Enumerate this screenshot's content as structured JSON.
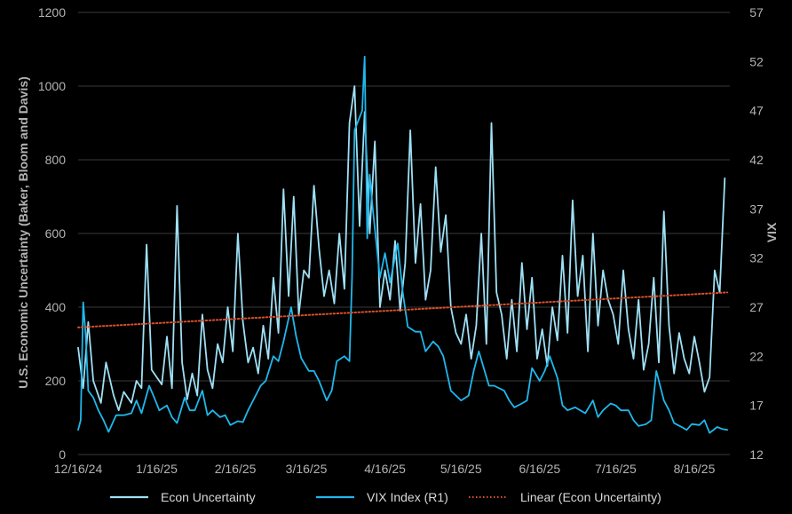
{
  "chart_data": {
    "type": "line",
    "background": "#000000",
    "grid": true,
    "legend_position": "bottom",
    "x_ticks": [
      "12/16/24",
      "1/16/25",
      "2/16/25",
      "3/16/25",
      "4/16/25",
      "5/16/25",
      "6/16/25",
      "7/16/25",
      "8/16/25"
    ],
    "x_range": [
      "2024-12-16",
      "2025-08-30"
    ],
    "y_left": {
      "label": "U.S. Economic Uncertainty (Baker, Bloom and Davis)",
      "ticks": [
        "0",
        "200",
        "400",
        "600",
        "800",
        "1000",
        "1200"
      ],
      "range": [
        0,
        1200
      ]
    },
    "y_right": {
      "label": "VIX",
      "ticks": [
        "12",
        "17",
        "22",
        "27",
        "32",
        "37",
        "42",
        "47",
        "52",
        "57"
      ],
      "range": [
        12,
        57
      ]
    },
    "series": [
      {
        "name": "Econ Uncertainty",
        "axis": "left",
        "color": "#9fe0f5",
        "points": [
          [
            "2024-12-16",
            290
          ],
          [
            "2024-12-18",
            180
          ],
          [
            "2024-12-20",
            360
          ],
          [
            "2024-12-22",
            200
          ],
          [
            "2024-12-25",
            140
          ],
          [
            "2024-12-27",
            250
          ],
          [
            "2024-12-30",
            160
          ],
          [
            "2025-01-01",
            120
          ],
          [
            "2025-01-03",
            170
          ],
          [
            "2025-01-06",
            140
          ],
          [
            "2025-01-08",
            200
          ],
          [
            "2025-01-10",
            180
          ],
          [
            "2025-01-12",
            570
          ],
          [
            "2025-01-14",
            230
          ],
          [
            "2025-01-16",
            210
          ],
          [
            "2025-01-18",
            190
          ],
          [
            "2025-01-20",
            320
          ],
          [
            "2025-01-22",
            180
          ],
          [
            "2025-01-24",
            675
          ],
          [
            "2025-01-26",
            250
          ],
          [
            "2025-01-28",
            150
          ],
          [
            "2025-01-30",
            220
          ],
          [
            "2025-02-01",
            160
          ],
          [
            "2025-02-03",
            380
          ],
          [
            "2025-02-05",
            230
          ],
          [
            "2025-02-07",
            180
          ],
          [
            "2025-02-09",
            300
          ],
          [
            "2025-02-11",
            250
          ],
          [
            "2025-02-13",
            400
          ],
          [
            "2025-02-15",
            280
          ],
          [
            "2025-02-17",
            600
          ],
          [
            "2025-02-19",
            360
          ],
          [
            "2025-02-21",
            250
          ],
          [
            "2025-02-23",
            290
          ],
          [
            "2025-02-25",
            220
          ],
          [
            "2025-02-27",
            350
          ],
          [
            "2025-03-01",
            260
          ],
          [
            "2025-03-03",
            480
          ],
          [
            "2025-03-05",
            330
          ],
          [
            "2025-03-07",
            720
          ],
          [
            "2025-03-09",
            430
          ],
          [
            "2025-03-11",
            700
          ],
          [
            "2025-03-13",
            380
          ],
          [
            "2025-03-15",
            500
          ],
          [
            "2025-03-17",
            480
          ],
          [
            "2025-03-19",
            730
          ],
          [
            "2025-03-21",
            560
          ],
          [
            "2025-03-23",
            430
          ],
          [
            "2025-03-25",
            500
          ],
          [
            "2025-03-27",
            410
          ],
          [
            "2025-03-29",
            600
          ],
          [
            "2025-03-31",
            450
          ],
          [
            "2025-04-02",
            900
          ],
          [
            "2025-04-04",
            1000
          ],
          [
            "2025-04-06",
            620
          ],
          [
            "2025-04-08",
            930
          ],
          [
            "2025-04-10",
            600
          ],
          [
            "2025-04-12",
            850
          ],
          [
            "2025-04-14",
            400
          ],
          [
            "2025-04-16",
            500
          ],
          [
            "2025-04-18",
            420
          ],
          [
            "2025-04-20",
            580
          ],
          [
            "2025-04-22",
            390
          ],
          [
            "2025-04-24",
            520
          ],
          [
            "2025-04-26",
            880
          ],
          [
            "2025-04-28",
            520
          ],
          [
            "2025-04-30",
            680
          ],
          [
            "2025-05-02",
            420
          ],
          [
            "2025-05-04",
            500
          ],
          [
            "2025-05-06",
            780
          ],
          [
            "2025-05-08",
            550
          ],
          [
            "2025-05-10",
            650
          ],
          [
            "2025-05-12",
            400
          ],
          [
            "2025-05-14",
            330
          ],
          [
            "2025-05-16",
            300
          ],
          [
            "2025-05-18",
            380
          ],
          [
            "2025-05-20",
            260
          ],
          [
            "2025-05-22",
            350
          ],
          [
            "2025-05-24",
            600
          ],
          [
            "2025-05-26",
            300
          ],
          [
            "2025-05-28",
            900
          ],
          [
            "2025-05-30",
            440
          ],
          [
            "2025-06-01",
            380
          ],
          [
            "2025-06-03",
            260
          ],
          [
            "2025-06-05",
            420
          ],
          [
            "2025-06-07",
            280
          ],
          [
            "2025-06-09",
            520
          ],
          [
            "2025-06-11",
            340
          ],
          [
            "2025-06-13",
            480
          ],
          [
            "2025-06-15",
            260
          ],
          [
            "2025-06-17",
            340
          ],
          [
            "2025-06-19",
            240
          ],
          [
            "2025-06-21",
            400
          ],
          [
            "2025-06-23",
            310
          ],
          [
            "2025-06-25",
            540
          ],
          [
            "2025-06-27",
            330
          ],
          [
            "2025-06-29",
            690
          ],
          [
            "2025-07-01",
            430
          ],
          [
            "2025-07-03",
            540
          ],
          [
            "2025-07-05",
            280
          ],
          [
            "2025-07-07",
            600
          ],
          [
            "2025-07-09",
            350
          ],
          [
            "2025-07-11",
            500
          ],
          [
            "2025-07-13",
            420
          ],
          [
            "2025-07-15",
            380
          ],
          [
            "2025-07-17",
            300
          ],
          [
            "2025-07-19",
            500
          ],
          [
            "2025-07-21",
            340
          ],
          [
            "2025-07-23",
            260
          ],
          [
            "2025-07-25",
            420
          ],
          [
            "2025-07-27",
            230
          ],
          [
            "2025-07-29",
            300
          ],
          [
            "2025-07-31",
            480
          ],
          [
            "2025-08-02",
            250
          ],
          [
            "2025-08-04",
            660
          ],
          [
            "2025-08-06",
            350
          ],
          [
            "2025-08-08",
            220
          ],
          [
            "2025-08-10",
            330
          ],
          [
            "2025-08-12",
            260
          ],
          [
            "2025-08-14",
            220
          ],
          [
            "2025-08-16",
            320
          ],
          [
            "2025-08-18",
            250
          ],
          [
            "2025-08-20",
            170
          ],
          [
            "2025-08-22",
            210
          ],
          [
            "2025-08-24",
            500
          ],
          [
            "2025-08-26",
            440
          ],
          [
            "2025-08-28",
            750
          ]
        ]
      },
      {
        "name": "VIX Index  (R1)",
        "axis": "right",
        "color": "#1fb8ec",
        "points": [
          [
            "2024-12-16",
            14.5
          ],
          [
            "2024-12-17",
            15.5
          ],
          [
            "2024-12-18",
            27.5
          ],
          [
            "2024-12-19",
            24.0
          ],
          [
            "2024-12-20",
            18.5
          ],
          [
            "2024-12-22",
            17.8
          ],
          [
            "2024-12-24",
            16.5
          ],
          [
            "2024-12-26",
            15.5
          ],
          [
            "2024-12-28",
            14.3
          ],
          [
            "2024-12-31",
            16.0
          ],
          [
            "2025-01-03",
            16.0
          ],
          [
            "2025-01-06",
            16.2
          ],
          [
            "2025-01-08",
            17.5
          ],
          [
            "2025-01-10",
            16.2
          ],
          [
            "2025-01-13",
            19.0
          ],
          [
            "2025-01-15",
            17.8
          ],
          [
            "2025-01-17",
            16.5
          ],
          [
            "2025-01-20",
            17.0
          ],
          [
            "2025-01-22",
            15.8
          ],
          [
            "2025-01-24",
            15.2
          ],
          [
            "2025-01-27",
            17.8
          ],
          [
            "2025-01-29",
            16.5
          ],
          [
            "2025-01-31",
            16.5
          ],
          [
            "2025-02-03",
            18.5
          ],
          [
            "2025-02-05",
            16.0
          ],
          [
            "2025-02-07",
            16.5
          ],
          [
            "2025-02-10",
            15.8
          ],
          [
            "2025-02-12",
            16.0
          ],
          [
            "2025-02-14",
            15.0
          ],
          [
            "2025-02-17",
            15.4
          ],
          [
            "2025-02-19",
            15.3
          ],
          [
            "2025-02-21",
            16.5
          ],
          [
            "2025-02-24",
            18.0
          ],
          [
            "2025-02-26",
            19.0
          ],
          [
            "2025-02-28",
            19.5
          ],
          [
            "2025-03-03",
            22.0
          ],
          [
            "2025-03-05",
            21.5
          ],
          [
            "2025-03-07",
            23.5
          ],
          [
            "2025-03-10",
            27.0
          ],
          [
            "2025-03-12",
            24.0
          ],
          [
            "2025-03-14",
            21.8
          ],
          [
            "2025-03-17",
            20.5
          ],
          [
            "2025-03-19",
            20.5
          ],
          [
            "2025-03-21",
            19.5
          ],
          [
            "2025-03-24",
            17.5
          ],
          [
            "2025-03-26",
            18.5
          ],
          [
            "2025-03-28",
            21.5
          ],
          [
            "2025-03-31",
            22.0
          ],
          [
            "2025-04-02",
            21.5
          ],
          [
            "2025-04-03",
            30.0
          ],
          [
            "2025-04-04",
            45.0
          ],
          [
            "2025-04-07",
            47.0
          ],
          [
            "2025-04-08",
            52.5
          ],
          [
            "2025-04-09",
            34.0
          ],
          [
            "2025-04-10",
            40.5
          ],
          [
            "2025-04-11",
            37.5
          ],
          [
            "2025-04-14",
            30.0
          ],
          [
            "2025-04-16",
            32.5
          ],
          [
            "2025-04-18",
            29.5
          ],
          [
            "2025-04-21",
            33.5
          ],
          [
            "2025-04-23",
            28.5
          ],
          [
            "2025-04-25",
            25.0
          ],
          [
            "2025-04-28",
            24.5
          ],
          [
            "2025-04-30",
            24.5
          ],
          [
            "2025-05-02",
            22.5
          ],
          [
            "2025-05-05",
            23.5
          ],
          [
            "2025-05-07",
            23.0
          ],
          [
            "2025-05-09",
            22.0
          ],
          [
            "2025-05-12",
            18.5
          ],
          [
            "2025-05-14",
            18.0
          ],
          [
            "2025-05-16",
            17.5
          ],
          [
            "2025-05-19",
            18.0
          ],
          [
            "2025-05-21",
            20.5
          ],
          [
            "2025-05-23",
            22.5
          ],
          [
            "2025-05-27",
            19.0
          ],
          [
            "2025-05-29",
            19.0
          ],
          [
            "2025-06-02",
            18.5
          ],
          [
            "2025-06-04",
            17.5
          ],
          [
            "2025-06-06",
            16.8
          ],
          [
            "2025-06-09",
            17.2
          ],
          [
            "2025-06-11",
            17.5
          ],
          [
            "2025-06-13",
            20.8
          ],
          [
            "2025-06-16",
            19.5
          ],
          [
            "2025-06-18",
            20.5
          ],
          [
            "2025-06-20",
            22.0
          ],
          [
            "2025-06-23",
            19.8
          ],
          [
            "2025-06-25",
            17.0
          ],
          [
            "2025-06-27",
            16.5
          ],
          [
            "2025-06-30",
            16.8
          ],
          [
            "2025-07-02",
            16.5
          ],
          [
            "2025-07-04",
            16.2
          ],
          [
            "2025-07-07",
            17.5
          ],
          [
            "2025-07-09",
            15.8
          ],
          [
            "2025-07-11",
            16.5
          ],
          [
            "2025-07-14",
            17.2
          ],
          [
            "2025-07-16",
            17.0
          ],
          [
            "2025-07-18",
            16.5
          ],
          [
            "2025-07-21",
            16.5
          ],
          [
            "2025-07-23",
            15.5
          ],
          [
            "2025-07-25",
            14.9
          ],
          [
            "2025-07-28",
            15.1
          ],
          [
            "2025-07-30",
            15.5
          ],
          [
            "2025-08-01",
            20.5
          ],
          [
            "2025-08-04",
            17.5
          ],
          [
            "2025-08-06",
            16.5
          ],
          [
            "2025-08-08",
            15.2
          ],
          [
            "2025-08-11",
            14.8
          ],
          [
            "2025-08-13",
            14.5
          ],
          [
            "2025-08-15",
            15.1
          ],
          [
            "2025-08-18",
            15.0
          ],
          [
            "2025-08-20",
            15.5
          ],
          [
            "2025-08-22",
            14.2
          ],
          [
            "2025-08-25",
            14.8
          ],
          [
            "2025-08-27",
            14.6
          ],
          [
            "2025-08-29",
            14.5
          ]
        ]
      },
      {
        "name": "Linear (Econ Uncertainty)",
        "axis": "left",
        "color": "#d9502a",
        "style": "dotted",
        "points": [
          [
            "2024-12-16",
            345
          ],
          [
            "2025-08-29",
            440
          ]
        ]
      }
    ]
  }
}
